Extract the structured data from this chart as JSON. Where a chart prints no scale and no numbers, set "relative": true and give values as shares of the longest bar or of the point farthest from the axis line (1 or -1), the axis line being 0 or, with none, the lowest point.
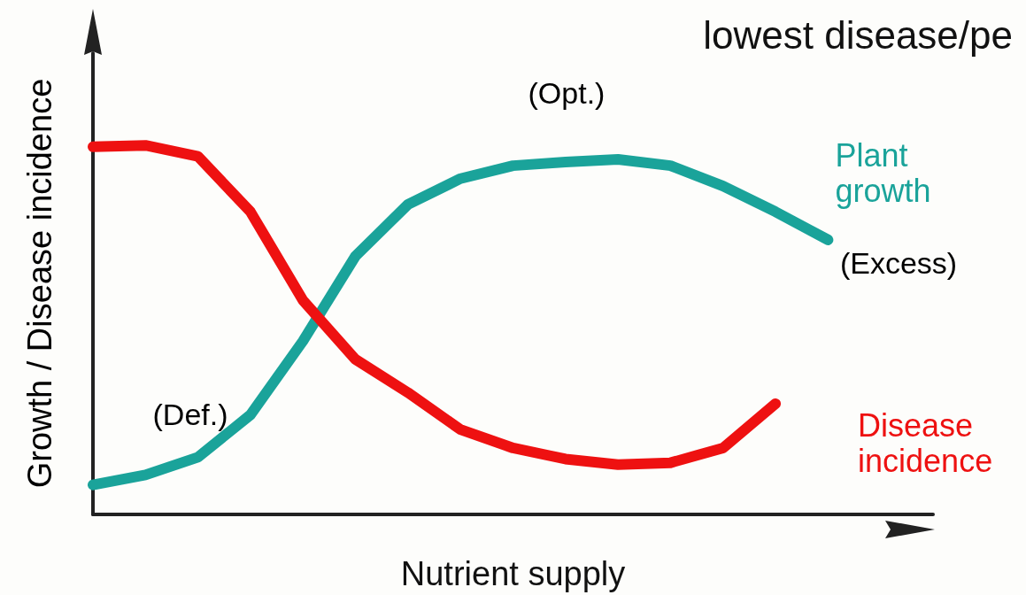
{
  "chart_data": {
    "type": "line",
    "title": "lowest disease/pe",
    "xlabel": "Nutrient supply",
    "ylabel": "Growth / Disease incidence",
    "relative": true,
    "legend": false,
    "grid": false,
    "line_style": "solid",
    "categories": [
      null,
      null,
      null,
      null,
      null,
      null,
      null,
      null,
      null,
      null,
      null,
      null,
      null,
      null,
      null,
      null,
      null
    ],
    "series": [
      {
        "name": "Plant growth",
        "color": "#1aa39a",
        "values": [
          0.08,
          0.107,
          0.155,
          0.27,
          0.47,
          0.7,
          0.84,
          0.91,
          0.945,
          0.955,
          0.962,
          0.945,
          0.89,
          0.82,
          0.744,
          null,
          null
        ]
      },
      {
        "name": "Disease incidence",
        "color": "#ee1111",
        "values": [
          0.996,
          1.0,
          0.97,
          0.82,
          0.58,
          0.42,
          0.33,
          0.23,
          0.18,
          0.15,
          0.135,
          0.14,
          0.18,
          0.3,
          null,
          null,
          null
        ]
      }
    ],
    "annotations": [
      "(Opt.)",
      "(Excess)",
      "(Def.)"
    ]
  }
}
